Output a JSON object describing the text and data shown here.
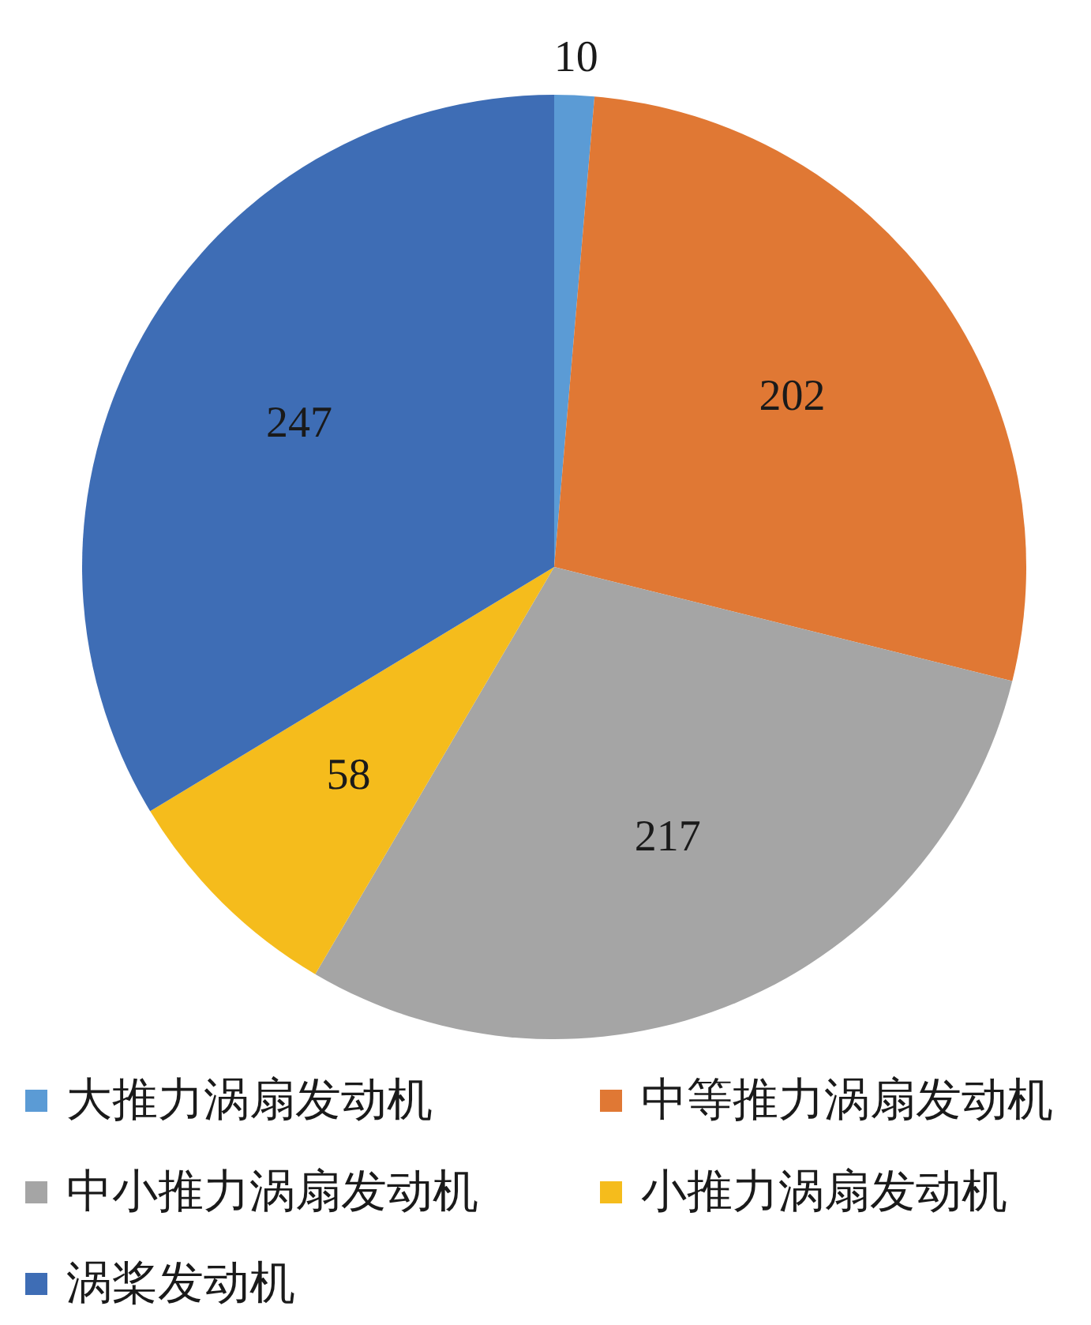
{
  "chart_data": {
    "type": "pie",
    "categories": [
      "大推力涡扇发动机",
      "中等推力涡扇发动机",
      "中小推力涡扇发动机",
      "小推力涡扇发动机",
      "涡桨发动机"
    ],
    "values": [
      10,
      202,
      217,
      58,
      247
    ],
    "colors": [
      "#5b9bd5",
      "#e07834",
      "#a5a5a5",
      "#f5bc1c",
      "#3e6db5"
    ],
    "data_labels": true,
    "legend": "bottom"
  }
}
